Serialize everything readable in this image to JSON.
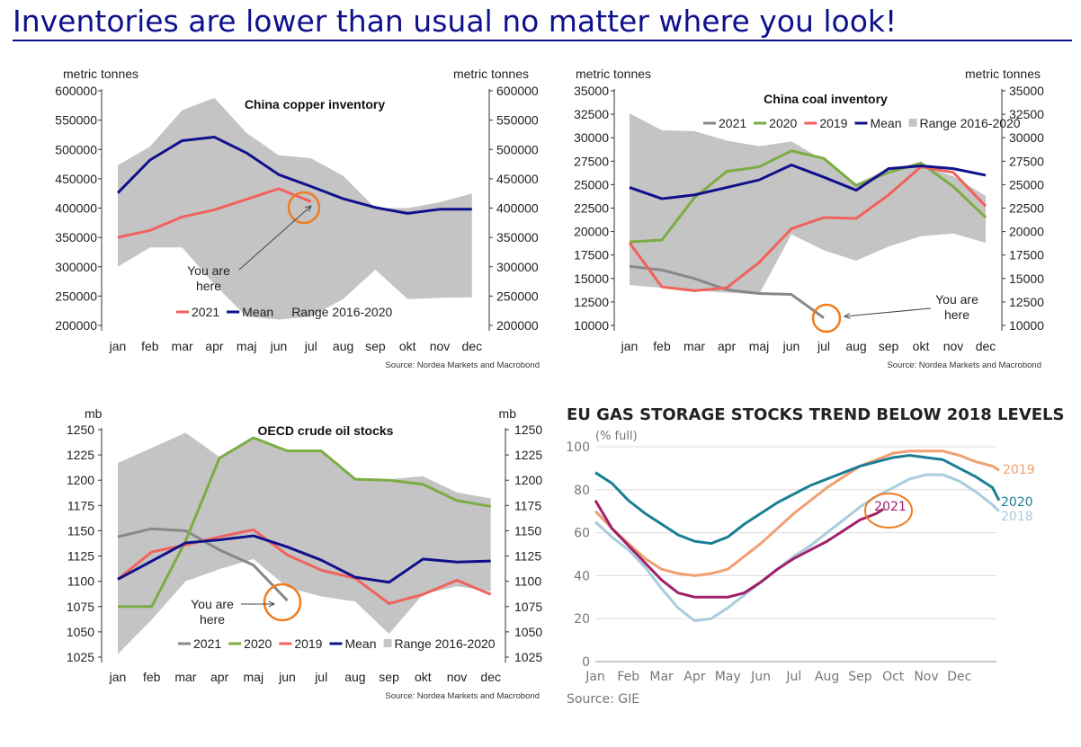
{
  "page": {
    "headline": "Inventories are lower than usual no matter where you look!",
    "colors": {
      "headline": "#0f118c",
      "y2021_gray": "#888888",
      "y2020_green": "#7cac43",
      "y2019_red": "#f2625c",
      "mean_navy": "#0f118c",
      "range_gray": "#c4c4c4",
      "highlight": "#f07c1e"
    }
  },
  "chart_data": [
    {
      "type": "line",
      "title": "China copper inventory",
      "ylabel_left": "metric tonnes",
      "ylabel_right": "metric tonnes",
      "source": "Source: Nordea Markets and Macrobond",
      "categories": [
        "jan",
        "feb",
        "mar",
        "apr",
        "maj",
        "jun",
        "jul",
        "aug",
        "sep",
        "okt",
        "nov",
        "dec"
      ],
      "ylim": [
        200000,
        600000
      ],
      "yticks": [
        200000,
        250000,
        300000,
        350000,
        400000,
        450000,
        500000,
        550000,
        600000
      ],
      "range_label": "Range 2016-2020",
      "range_low": [
        300000,
        333000,
        333000,
        270000,
        215000,
        210000,
        215000,
        245000,
        295000,
        245000,
        247000,
        248000
      ],
      "range_high": [
        473000,
        505000,
        567000,
        588000,
        528000,
        490000,
        485000,
        455000,
        400000,
        400000,
        410000,
        425000
      ],
      "series": [
        {
          "name": "2021",
          "color": "#f2625c",
          "values": [
            350000,
            362000,
            385000,
            397000,
            415000,
            433000,
            411000,
            null,
            null,
            null,
            null,
            null
          ]
        },
        {
          "name": "Mean",
          "color": "#0f118c",
          "values": [
            426000,
            482000,
            515000,
            521000,
            494000,
            457000,
            437000,
            416000,
            401000,
            391000,
            398000,
            398000
          ]
        }
      ],
      "legend": [
        "2021",
        "Mean",
        "Range 2016-2020"
      ],
      "annotation": "You are here",
      "annotation_lines": [
        "You are",
        "here"
      ]
    },
    {
      "type": "line",
      "title": "China coal inventory",
      "ylabel_left": "metric tonnes",
      "ylabel_right": "metric tonnes",
      "source": "Source: Nordea Markets and Macrobond",
      "categories": [
        "jan",
        "feb",
        "mar",
        "apr",
        "maj",
        "jun",
        "jul",
        "aug",
        "sep",
        "okt",
        "nov",
        "dec"
      ],
      "ylim": [
        10000,
        35000
      ],
      "yticks": [
        10000,
        12500,
        15000,
        17500,
        20000,
        22500,
        25000,
        27500,
        30000,
        32500,
        35000
      ],
      "range_label": "Range 2016-2020",
      "range_low": [
        14300,
        14000,
        13700,
        13500,
        13300,
        19700,
        18000,
        16900,
        18400,
        19500,
        19800,
        18800
      ],
      "range_high": [
        32600,
        30800,
        30700,
        29700,
        29100,
        29600,
        27600,
        25100,
        26700,
        27100,
        25900,
        23800
      ],
      "series": [
        {
          "name": "2021",
          "color": "#888888",
          "values": [
            16300,
            15900,
            15000,
            13800,
            13400,
            13300,
            10800,
            null,
            null,
            null,
            null,
            null
          ]
        },
        {
          "name": "2020",
          "color": "#7cac43",
          "values": [
            18900,
            19100,
            23600,
            26400,
            26900,
            28600,
            27800,
            24900,
            26300,
            27300,
            24800,
            21500
          ]
        },
        {
          "name": "2019",
          "color": "#f2625c",
          "values": [
            18800,
            14100,
            13700,
            14000,
            16700,
            20300,
            21500,
            21400,
            23900,
            26900,
            26300,
            22700
          ]
        },
        {
          "name": "Mean",
          "color": "#0f118c",
          "values": [
            24700,
            23500,
            23900,
            24700,
            25500,
            27100,
            25800,
            24400,
            26700,
            27000,
            26700,
            26000
          ]
        }
      ],
      "legend": [
        "2021",
        "2020",
        "2019",
        "Mean",
        "Range 2016-2020"
      ],
      "annotation": "You are here",
      "annotation_lines": [
        "You are",
        "here"
      ]
    },
    {
      "type": "line",
      "title": "OECD crude oil stocks",
      "ylabel_left": "mb",
      "ylabel_right": "mb",
      "source": "Source: Nordea Markets and Macrobond",
      "categories": [
        "jan",
        "feb",
        "mar",
        "apr",
        "maj",
        "jun",
        "jul",
        "aug",
        "sep",
        "okt",
        "nov",
        "dec"
      ],
      "ylim": [
        1025,
        1250
      ],
      "yticks": [
        1025,
        1050,
        1075,
        1100,
        1125,
        1150,
        1175,
        1200,
        1225,
        1250
      ],
      "range_label": "Range 2016-2020",
      "range_low": [
        1028,
        1062,
        1100,
        1112,
        1122,
        1094,
        1085,
        1080,
        1048,
        1087,
        1095,
        1090
      ],
      "range_high": [
        1217,
        1232,
        1247,
        1223,
        1243,
        1230,
        1230,
        1202,
        1201,
        1204,
        1188,
        1182
      ],
      "series": [
        {
          "name": "2021",
          "color": "#888888",
          "values": [
            1144,
            1152,
            1150,
            1131,
            1116,
            1081,
            null,
            null,
            null,
            null,
            null,
            null
          ]
        },
        {
          "name": "2020",
          "color": "#7cac43",
          "values": [
            1075,
            1075,
            1140,
            1222,
            1242,
            1229,
            1229,
            1201,
            1200,
            1196,
            1180,
            1174
          ]
        },
        {
          "name": "2019",
          "color": "#f2625c",
          "values": [
            1102,
            1129,
            1136,
            1144,
            1151,
            1126,
            1111,
            1103,
            1078,
            1087,
            1101,
            1087
          ]
        },
        {
          "name": "Mean",
          "color": "#0f118c",
          "values": [
            1102,
            1120,
            1138,
            1141,
            1145,
            1134,
            1121,
            1104,
            1099,
            1122,
            1119,
            1120
          ]
        }
      ],
      "legend": [
        "2021",
        "2020",
        "2019",
        "Mean",
        "Range 2016-2020"
      ],
      "annotation": "You are here",
      "annotation_lines": [
        "You are",
        "here"
      ]
    },
    {
      "type": "line",
      "title": "EU GAS STORAGE STOCKS TREND BELOW 2018 LEVELS",
      "ylabel": "(% full)",
      "source": "Source: GIE",
      "categories": [
        "Jan",
        "Feb",
        "Mar",
        "Apr",
        "May",
        "Jun",
        "Jul",
        "Aug",
        "Sep",
        "Oct",
        "Nov",
        "Dec"
      ],
      "ylim": [
        0,
        100
      ],
      "yticks": [
        0,
        20,
        40,
        60,
        80,
        100
      ],
      "x_months": [
        0,
        1,
        2,
        3,
        4,
        5,
        6,
        7,
        8,
        9,
        10,
        11,
        12
      ],
      "series": [
        {
          "name": "2019",
          "color": "#f0a070",
          "x": [
            0,
            0.5,
            1,
            1.5,
            2,
            2.5,
            3,
            3.5,
            4,
            4.5,
            5,
            5.5,
            6,
            6.5,
            7,
            7.5,
            8,
            8.5,
            9,
            9.5,
            10,
            10.5,
            11,
            11.5,
            12,
            12.2
          ],
          "values": [
            70,
            62,
            55,
            48,
            43,
            41,
            40,
            41,
            43,
            49,
            55,
            62,
            69,
            75,
            81,
            86,
            91,
            94,
            97,
            98,
            98,
            98,
            96,
            93,
            91,
            89
          ]
        },
        {
          "name": "2020",
          "color": "#1a7e95",
          "x": [
            0,
            0.5,
            1,
            1.5,
            2,
            2.5,
            3,
            3.5,
            4,
            4.5,
            5,
            5.5,
            6,
            6.5,
            7,
            7.5,
            8,
            8.5,
            9,
            9.5,
            10,
            10.5,
            11,
            11.5,
            12,
            12.2
          ],
          "values": [
            88,
            83,
            75,
            69,
            64,
            59,
            56,
            55,
            58,
            64,
            69,
            74,
            78,
            82,
            85,
            88,
            91,
            93,
            95,
            96,
            95,
            94,
            90,
            86,
            81,
            75
          ]
        },
        {
          "name": "2018",
          "color": "#a9ccdc",
          "x": [
            0,
            0.5,
            1,
            1.5,
            2,
            2.5,
            3,
            3.5,
            4,
            4.5,
            5,
            5.5,
            6,
            6.5,
            7,
            7.5,
            8,
            8.5,
            9,
            9.5,
            10,
            10.5,
            11,
            11.5,
            12,
            12.2
          ],
          "values": [
            65,
            58,
            52,
            44,
            34,
            25,
            19,
            20,
            25,
            31,
            37,
            43,
            49,
            54,
            60,
            66,
            72,
            77,
            81,
            85,
            87,
            87,
            84,
            79,
            73,
            70
          ]
        },
        {
          "name": "2021",
          "color": "#a0206a",
          "x": [
            0,
            0.5,
            1,
            1.5,
            2,
            2.5,
            3,
            3.5,
            4,
            4.5,
            5,
            5.5,
            6,
            6.5,
            7,
            7.5,
            8,
            8.5,
            8.7
          ],
          "values": [
            75,
            62,
            54,
            46,
            38,
            32,
            30,
            30,
            30,
            32,
            37,
            43,
            48,
            52,
            56,
            61,
            66,
            69,
            71
          ]
        }
      ],
      "end_labels": [
        "2019",
        "2020",
        "2018"
      ]
    }
  ]
}
